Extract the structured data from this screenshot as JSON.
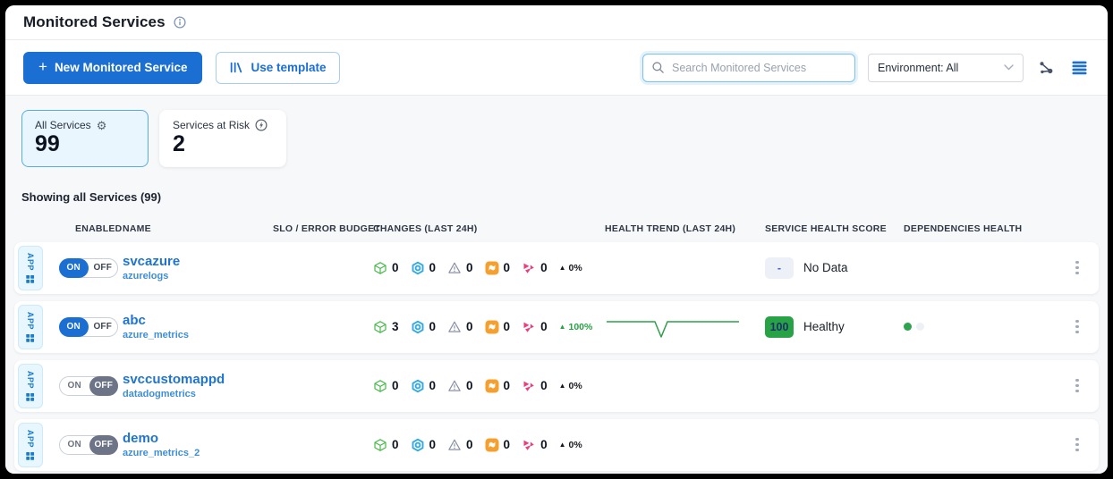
{
  "header": {
    "title": "Monitored Services"
  },
  "toolbar": {
    "new_service_button": {
      "plus": "+",
      "label": "New Monitored Service"
    },
    "use_template_button": {
      "label": "Use template"
    },
    "search": {
      "placeholder": "Search Monitored Services",
      "value": ""
    },
    "environment_filter": {
      "value": "Environment: All"
    }
  },
  "summary_cards": [
    {
      "label": "All Services",
      "value": "99",
      "icon": "gear-icon",
      "active": true
    },
    {
      "label": "Services at Risk",
      "value": "2",
      "icon": "lightning-circle-icon",
      "active": false
    }
  ],
  "showing_text": "Showing all Services (99)",
  "table": {
    "columns": [
      "ENABLED",
      "NAME",
      "SLO / ERROR BUDGET",
      "CHANGES (LAST 24H)",
      "HEALTH TREND (LAST 24H)",
      "SERVICE HEALTH SCORE",
      "DEPENDENCIES HEALTH"
    ],
    "toggle": {
      "on": "ON",
      "off": "OFF"
    },
    "service_type_label": "APP",
    "delta_arrow": "▲",
    "change_types": [
      "deploy-cube-icon",
      "hexagon-node-icon",
      "warning-triangle-icon",
      "flag-icon",
      "event-shards-icon"
    ],
    "rows": [
      {
        "name": "svcazure",
        "subtitle": "azurelogs",
        "enabled": true,
        "changes": [
          0,
          0,
          0,
          0,
          0
        ],
        "delta": "0%",
        "delta_positive": false,
        "trend": null,
        "score": {
          "type": "nodata",
          "value": "-",
          "label": "No Data"
        },
        "dependencies": []
      },
      {
        "name": "abc",
        "subtitle": "azure_metrics",
        "enabled": true,
        "changes": [
          3,
          0,
          0,
          0,
          0
        ],
        "delta": "100%",
        "delta_positive": true,
        "trend": "flat-line-with-sharp-dip",
        "score": {
          "type": "healthy",
          "value": "100",
          "label": "Healthy"
        },
        "dependencies": [
          "green",
          "gray"
        ]
      },
      {
        "name": "svccustomappd",
        "subtitle": "datadogmetrics",
        "enabled": false,
        "changes": [
          0,
          0,
          0,
          0,
          0
        ],
        "delta": "0%",
        "delta_positive": false,
        "trend": null,
        "score": null,
        "dependencies": []
      },
      {
        "name": "demo",
        "subtitle": "azure_metrics_2",
        "enabled": false,
        "changes": [
          0,
          0,
          0,
          0,
          0
        ],
        "delta": "0%",
        "delta_positive": false,
        "trend": null,
        "score": null,
        "dependencies": []
      }
    ]
  },
  "colors": {
    "accent": "#1b6fd3",
    "link": "#1f74d2",
    "healthy_green": "#27a346",
    "sparkline_green": "#2f9e4a",
    "cube_green": "#49b84d",
    "node_blue": "#35aae2",
    "warning_gray": "#8a8fa8",
    "flag_orange": "#f5a02e",
    "event_pink": "#ee3d7c",
    "nodata_bg": "#edf0f6",
    "active_card_bg": "#e9f6fd",
    "active_card_border": "#57ace5"
  }
}
